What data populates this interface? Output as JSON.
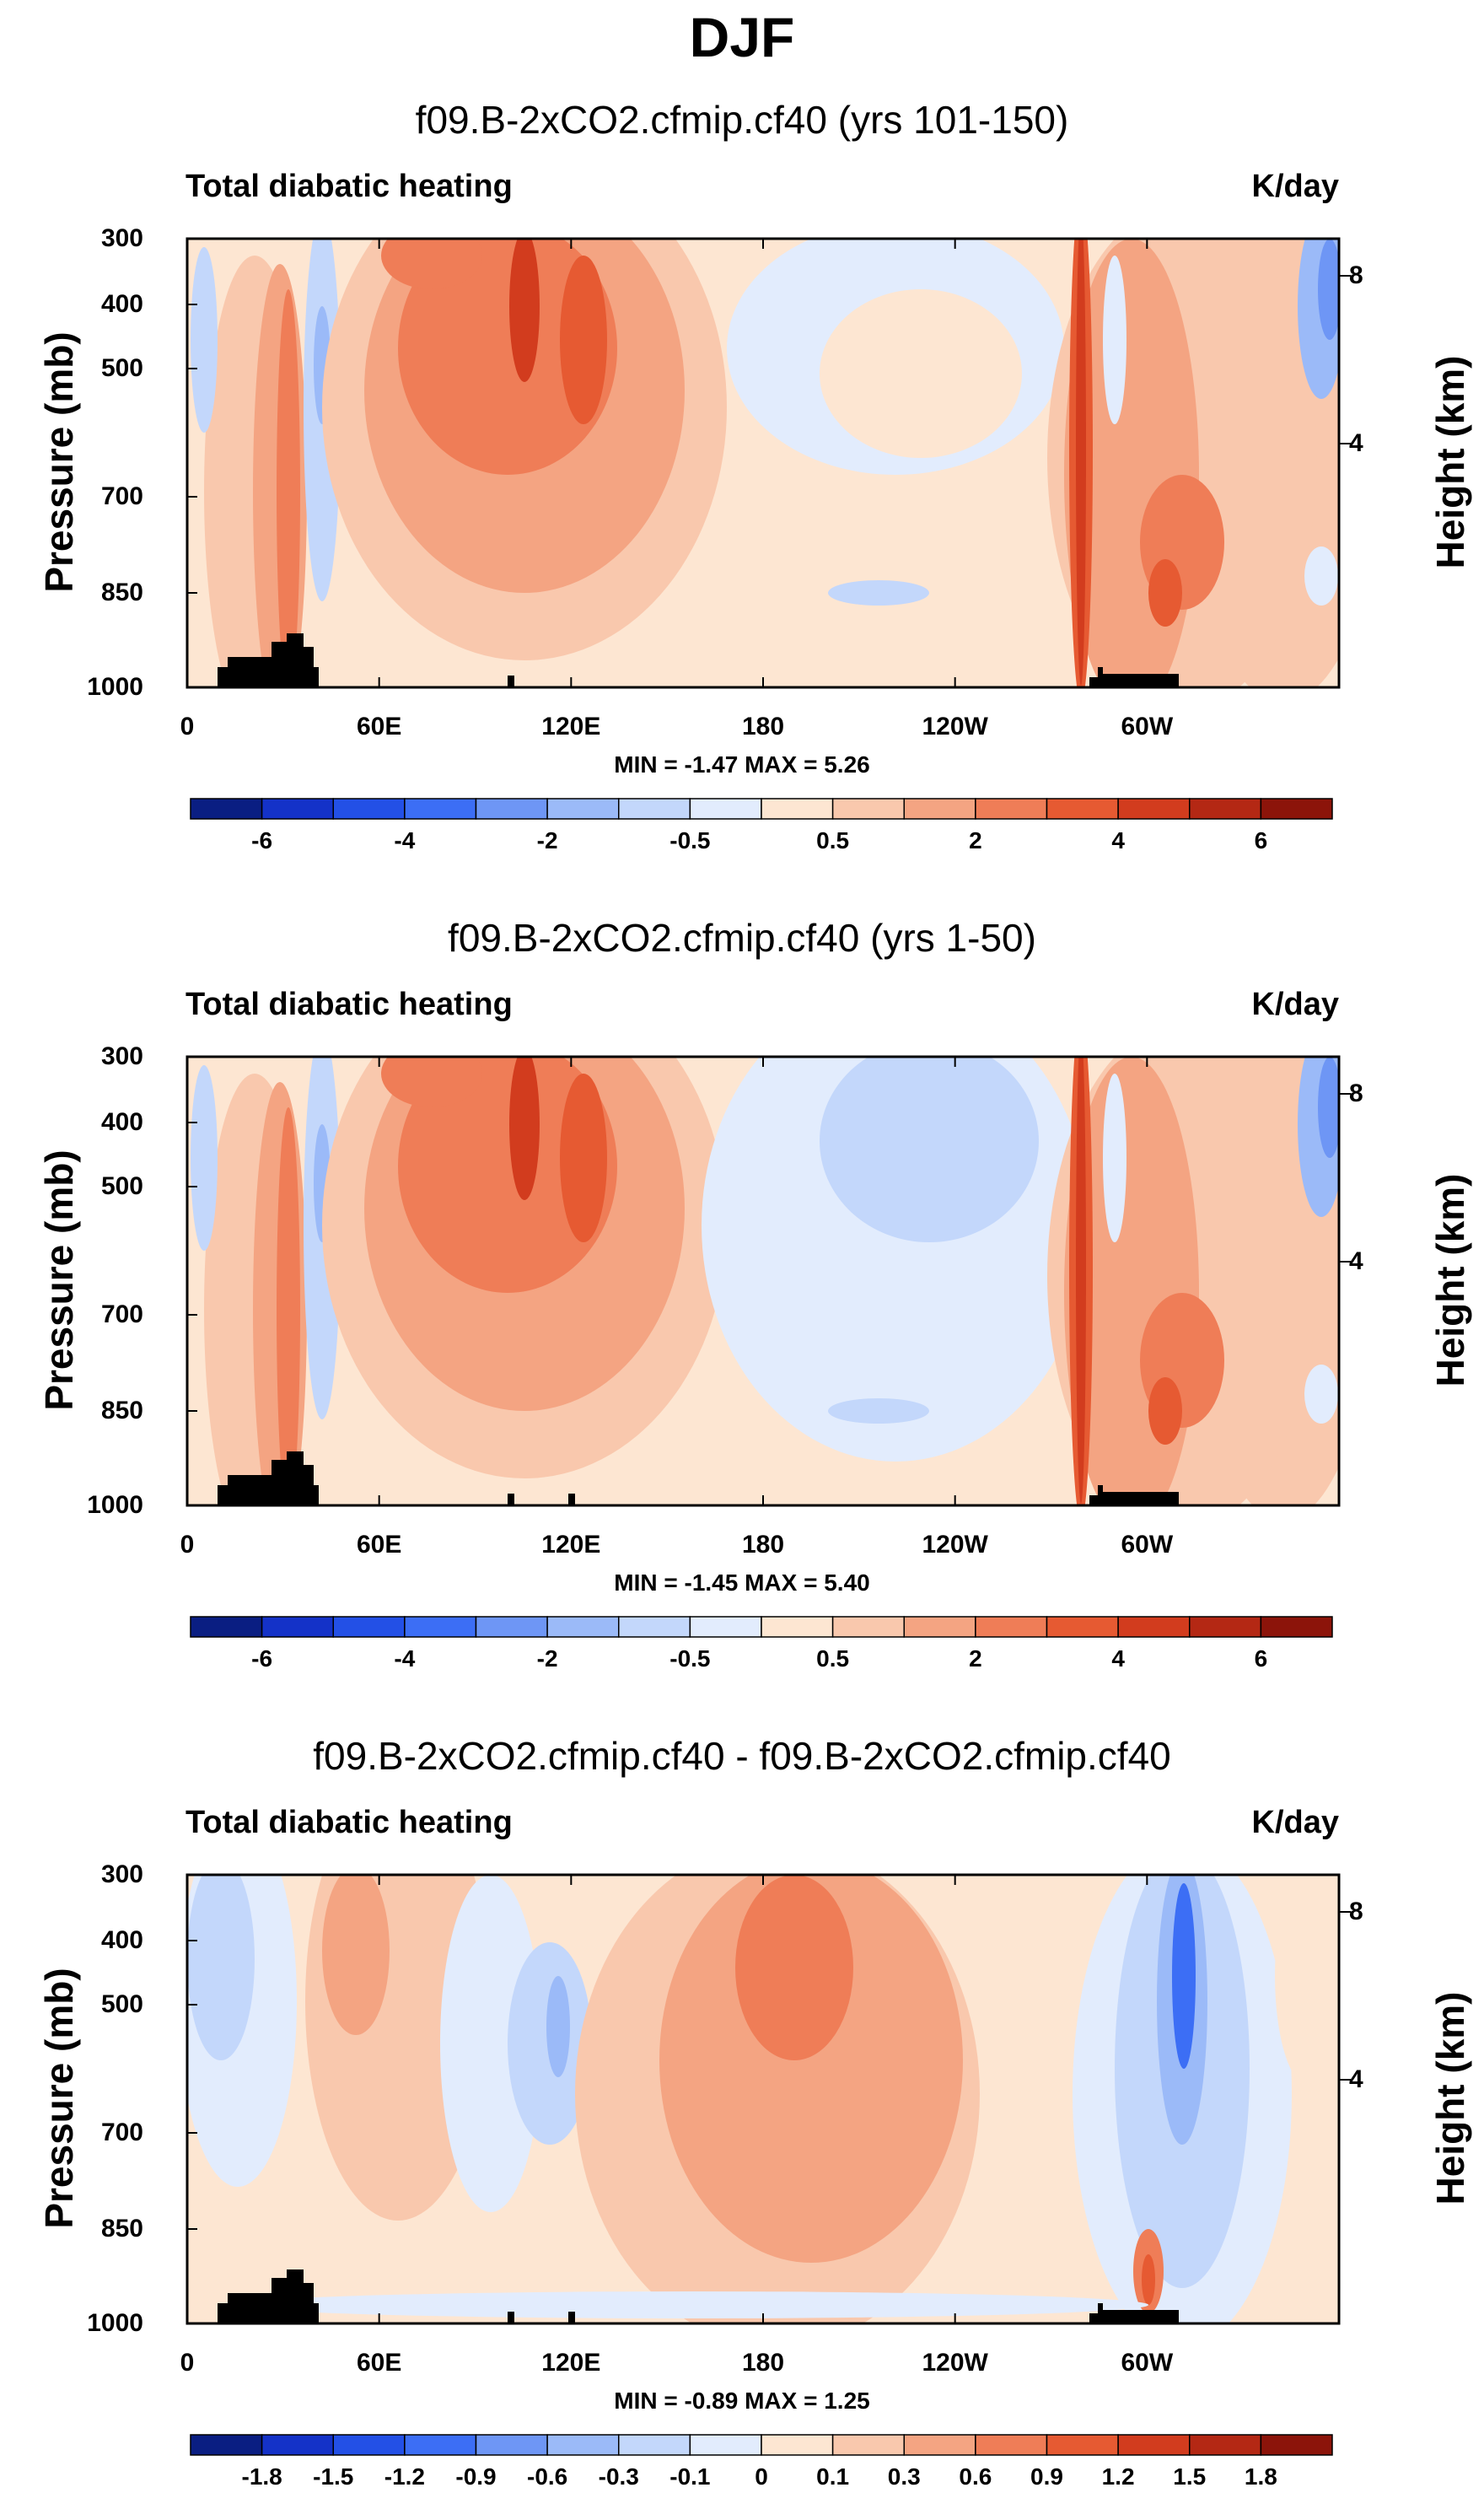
{
  "figure_title": "DJF",
  "chart_data": [
    {
      "type": "heatmap",
      "title": "f09.B-2xCO2.cfmip.cf40 (yrs 101-150)",
      "left_label": "Total diabatic heating",
      "units": "K/day",
      "ylabel": "Pressure (mb)",
      "ylabel_right": "Height (km)",
      "yticks": [
        "300",
        "400",
        "500",
        "700",
        "850",
        "1000"
      ],
      "height_ticks": [
        "8",
        "4"
      ],
      "xticks": [
        "0",
        "60E",
        "120E",
        "180",
        "120W",
        "60W"
      ],
      "min_max_text": "MIN =  -1.47  MAX =   5.26",
      "colorbar_ticks": [
        "-6",
        "-4",
        "-2",
        "-0.5",
        "0.5",
        "2",
        "4",
        "6"
      ],
      "colorbar_colors": [
        "#0a1e82",
        "#1432c8",
        "#2350e6",
        "#3c6ef5",
        "#6e96f5",
        "#9bbaf8",
        "#c3d7fb",
        "#e2ecfd",
        "#fde6d2",
        "#f9c8ad",
        "#f4a482",
        "#ef7d57",
        "#e65a32",
        "#d23c1e",
        "#b42814",
        "#8c140a"
      ],
      "x_range": [
        0,
        360
      ],
      "y_range": [
        300,
        1000
      ],
      "min": -1.47,
      "max": 5.26
    },
    {
      "type": "heatmap",
      "title": "f09.B-2xCO2.cfmip.cf40 (yrs 1-50)",
      "left_label": "Total diabatic heating",
      "units": "K/day",
      "ylabel": "Pressure (mb)",
      "ylabel_right": "Height (km)",
      "yticks": [
        "300",
        "400",
        "500",
        "700",
        "850",
        "1000"
      ],
      "height_ticks": [
        "8",
        "4"
      ],
      "xticks": [
        "0",
        "60E",
        "120E",
        "180",
        "120W",
        "60W"
      ],
      "min_max_text": "MIN =  -1.45  MAX =   5.40",
      "colorbar_ticks": [
        "-6",
        "-4",
        "-2",
        "-0.5",
        "0.5",
        "2",
        "4",
        "6"
      ],
      "colorbar_colors": [
        "#0a1e82",
        "#1432c8",
        "#2350e6",
        "#3c6ef5",
        "#6e96f5",
        "#9bbaf8",
        "#c3d7fb",
        "#e2ecfd",
        "#fde6d2",
        "#f9c8ad",
        "#f4a482",
        "#ef7d57",
        "#e65a32",
        "#d23c1e",
        "#b42814",
        "#8c140a"
      ],
      "x_range": [
        0,
        360
      ],
      "y_range": [
        300,
        1000
      ],
      "min": -1.45,
      "max": 5.4
    },
    {
      "type": "heatmap",
      "title": "f09.B-2xCO2.cfmip.cf40 - f09.B-2xCO2.cfmip.cf40",
      "left_label": "Total diabatic heating",
      "units": "K/day",
      "ylabel": "Pressure (mb)",
      "ylabel_right": "Height (km)",
      "yticks": [
        "300",
        "400",
        "500",
        "700",
        "850",
        "1000"
      ],
      "height_ticks": [
        "8",
        "4"
      ],
      "xticks": [
        "0",
        "60E",
        "120E",
        "180",
        "120W",
        "60W"
      ],
      "min_max_text": "MIN =  -0.89  MAX =   1.25",
      "colorbar_ticks": [
        "-1.8",
        "-1.5",
        "-1.2",
        "-0.9",
        "-0.6",
        "-0.3",
        "-0.1",
        "0",
        "0.1",
        "0.3",
        "0.6",
        "0.9",
        "1.2",
        "1.5",
        "1.8"
      ],
      "colorbar_colors": [
        "#0a1e82",
        "#1432c8",
        "#2350e6",
        "#3c6ef5",
        "#6e96f5",
        "#9bbaf8",
        "#c3d7fb",
        "#e2ecfd",
        "#fde6d2",
        "#f9c8ad",
        "#f4a482",
        "#ef7d57",
        "#e65a32",
        "#d23c1e",
        "#b42814",
        "#8c140a"
      ],
      "x_range": [
        0,
        360
      ],
      "y_range": [
        300,
        1000
      ],
      "min": -0.89,
      "max": 1.25
    }
  ]
}
